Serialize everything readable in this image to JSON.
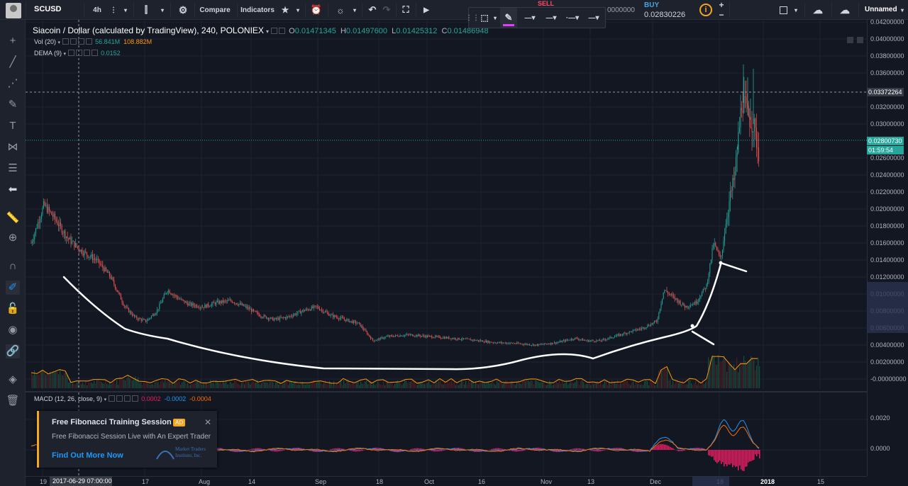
{
  "toolbar": {
    "symbol": "SCUSD",
    "interval": "4h",
    "compare_label": "Compare",
    "indicators_label": "Indicators",
    "sell_label": "SELL",
    "sell_price": "0000000",
    "buy_label": "BUY",
    "buy_price": "0.02830226",
    "layout_name": "Unnamed",
    "icons": [
      "menu-icon",
      "candles-icon",
      "gear-icon",
      "star-icon",
      "alert-icon",
      "bulb-icon",
      "undo-icon",
      "redo-icon",
      "fullscreen-icon",
      "play-icon",
      "plus-icon",
      "minus-icon",
      "cloud-icon",
      "cloud-upload-icon"
    ]
  },
  "chart": {
    "title": "Siacoin / Dollar (calculated by TradingView), 240, POLONIEX",
    "o_label": "O",
    "o": "0.01471345",
    "h_label": "H",
    "h": "0.01497600",
    "l_label": "L",
    "l": "0.01425312",
    "c_label": "C",
    "c": "0.01486948"
  },
  "indicators": {
    "vol_label": "Vol (20)",
    "vol_v1": "56.841M",
    "vol_v2": "108.882M",
    "dema_label": "DEMA (9)",
    "dema_v": "0.0152",
    "macd_label": "MACD (12, 26, close, 9)",
    "macd_v1": "0.0002",
    "macd_v2": "-0.0002",
    "macd_v3": "-0.0004"
  },
  "price_axis": {
    "labels": [
      "0.04200000",
      "0.04000000",
      "0.03800000",
      "0.03600000",
      "0.03200000",
      "0.03000000",
      "0.02600000",
      "0.02400000",
      "0.02200000",
      "0.02000000",
      "0.01800000",
      "0.01600000",
      "0.01400000",
      "0.01200000",
      "0.01000000",
      "0.00800000",
      "0.00600000",
      "0.00400000",
      "0.00200000",
      "-0.00000000"
    ],
    "crosshair_price": "0.03372264",
    "last_price": "0.02800730",
    "countdown": "01:59:54",
    "macd_labels": [
      "0.0020",
      "0.0000"
    ]
  },
  "time_axis": {
    "labels": [
      "19",
      "17",
      "Aug",
      "14",
      "Sep",
      "18",
      "Oct",
      "16",
      "Nov",
      "13",
      "Dec",
      "18",
      "2018",
      "15"
    ],
    "crosshair_date": "2017-06-29 07:00:00"
  },
  "ad": {
    "title": "Free Fibonacci Training Session",
    "badge": "AD",
    "description": "Free Fibonacci Session Live with An Expert Trader",
    "link": "Find Out More Now",
    "logo_line1": "Market Traders",
    "logo_line2": "Institute, Inc."
  },
  "colors": {
    "bull": "#26a69a",
    "bear": "#ef5350",
    "drawing": "#ffffff",
    "macd_line": "#2196f3",
    "signal_line": "#ff6d00",
    "hist": "#e91e63"
  }
}
